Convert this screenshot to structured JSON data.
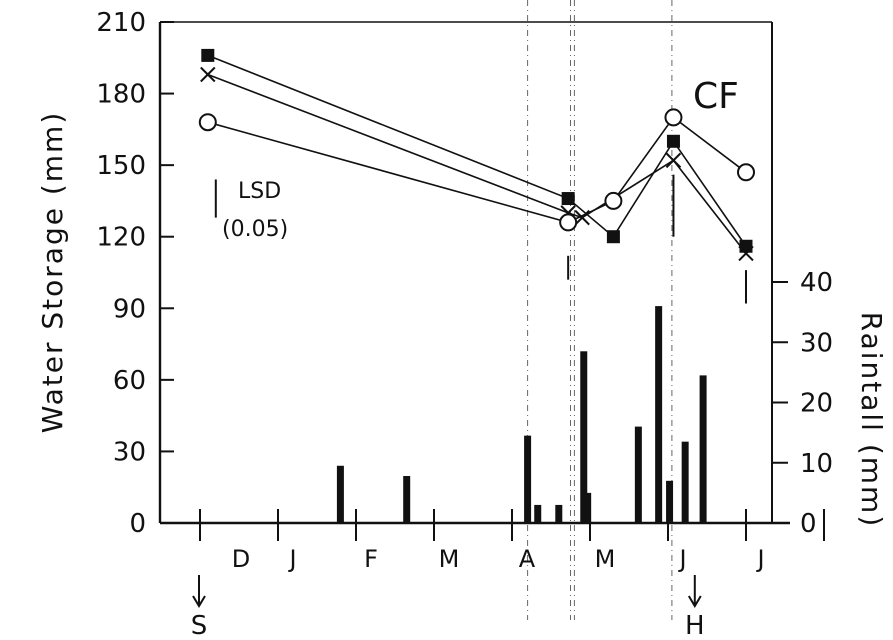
{
  "chart_data": {
    "type": "line",
    "panel_label": "CF",
    "left_axis": {
      "label": "Water Storage (mm)",
      "range": [
        0,
        210
      ],
      "ticks": [
        "0",
        "30",
        "60",
        "90",
        "120",
        "150",
        "180",
        "210"
      ]
    },
    "right_axis": {
      "label": "Raintall (mm)",
      "range": [
        0,
        40
      ],
      "ticks": [
        "0",
        "10",
        "20",
        "30",
        "40"
      ]
    },
    "months": [
      "D",
      "J",
      "F",
      "M",
      "A",
      "M",
      "J",
      "J"
    ],
    "events": [
      {
        "label": "S",
        "at": 0.5
      },
      {
        "label": "H",
        "at": 6.6
      }
    ],
    "lsd_label": "LSD",
    "lsd_value": "(0.05)",
    "lsd_bars": [
      {
        "x": 0.1,
        "low": 128,
        "high": 144
      },
      {
        "x": 4.72,
        "low": 102,
        "high": 112
      },
      {
        "x": 6.07,
        "low": 120,
        "high": 146
      },
      {
        "x": 7.0,
        "low": 92,
        "high": 106
      }
    ],
    "series": [
      {
        "marker": "filled-square",
        "points": [
          [
            0.1,
            196
          ],
          [
            4.72,
            136
          ],
          [
            5.3,
            120
          ],
          [
            6.07,
            160
          ],
          [
            7.0,
            116
          ]
        ]
      },
      {
        "marker": "x",
        "points": [
          [
            0.1,
            188
          ],
          [
            4.72,
            130
          ],
          [
            4.9,
            128
          ],
          [
            6.07,
            152
          ],
          [
            7.0,
            113
          ]
        ]
      },
      {
        "marker": "open-circle",
        "points": [
          [
            0.1,
            168
          ],
          [
            4.72,
            126
          ],
          [
            5.3,
            135
          ],
          [
            6.07,
            170
          ],
          [
            7.0,
            147
          ]
        ]
      }
    ],
    "rainfall": [
      {
        "x": 1.8,
        "value": 9.5
      },
      {
        "x": 2.65,
        "value": 7.8
      },
      {
        "x": 4.2,
        "value": 14.5
      },
      {
        "x": 4.33,
        "value": 3
      },
      {
        "x": 4.6,
        "value": 3
      },
      {
        "x": 4.92,
        "value": 28.5
      },
      {
        "x": 4.97,
        "value": 5
      },
      {
        "x": 5.62,
        "value": 16
      },
      {
        "x": 5.88,
        "value": 36
      },
      {
        "x": 6.02,
        "value": 7
      },
      {
        "x": 6.22,
        "value": 13.5
      },
      {
        "x": 6.45,
        "value": 24.5
      }
    ],
    "vertical_markers": [
      4.2,
      4.75,
      4.8,
      6.05
    ]
  }
}
